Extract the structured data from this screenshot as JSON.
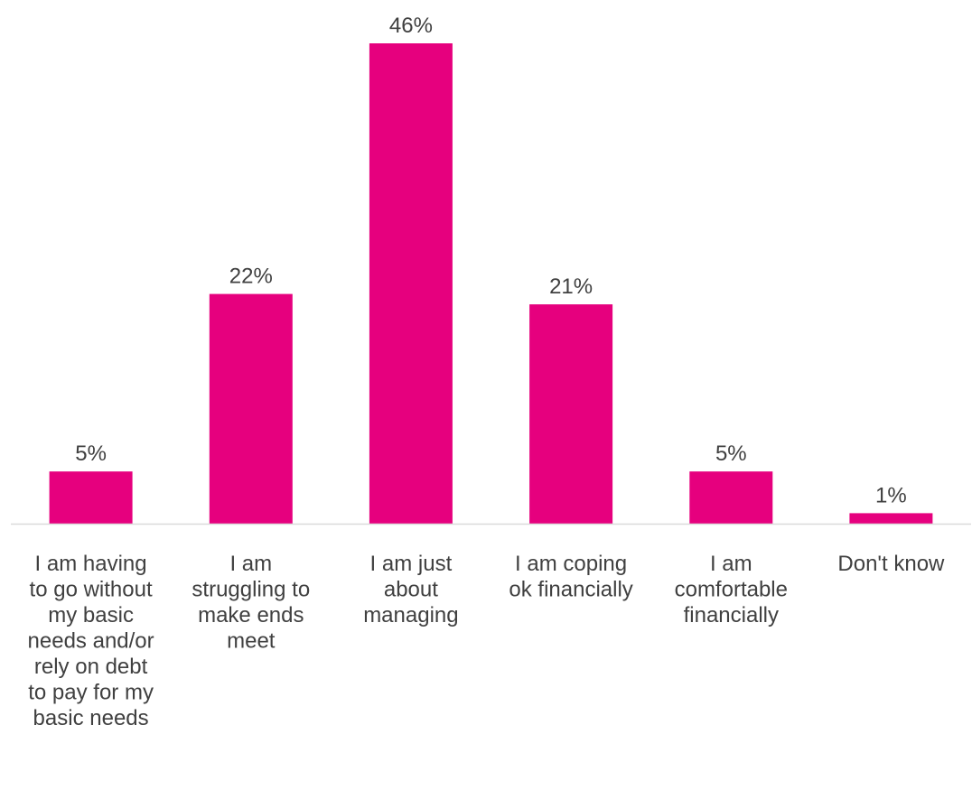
{
  "chart_data": {
    "type": "bar",
    "title": "",
    "xlabel": "",
    "ylabel": "",
    "categories": [
      "I am having to go without my basic needs and/or rely on debt to pay for my basic needs",
      "I am struggling to make ends meet",
      "I am just about managing",
      "I am coping ok financially",
      "I am comfortable financially",
      "Don't know"
    ],
    "category_lines": [
      [
        "I am having",
        "to go without",
        "my basic",
        "needs and/or",
        "rely on debt",
        "to pay for my",
        "basic needs"
      ],
      [
        "I am",
        "struggling to",
        "make ends",
        "meet"
      ],
      [
        "I am just",
        "about",
        "managing"
      ],
      [
        "I am coping",
        "ok financially"
      ],
      [
        "I am",
        "comfortable",
        "financially"
      ],
      [
        "Don't know"
      ]
    ],
    "values": [
      5,
      22,
      46,
      21,
      5,
      1
    ],
    "data_labels": [
      "5%",
      "22%",
      "46%",
      "21%",
      "5%",
      "1%"
    ],
    "unit": "%",
    "ylim": [
      0,
      46
    ],
    "grid": false,
    "legend": "none",
    "colors": {
      "bar": "#e6007e",
      "axis": "#d9d9d9",
      "label_text": "#404040"
    }
  }
}
